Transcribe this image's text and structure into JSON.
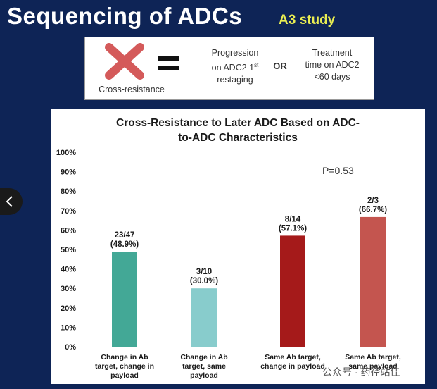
{
  "header": {
    "title": "Sequencing of ADCs",
    "study_label": "A3 study"
  },
  "legend": {
    "cross_label": "Cross-resistance",
    "equals_icon": "equals-icon",
    "x_icon": "x-icon",
    "cond1_line1": "Progression",
    "cond1_line2": "on ADC2 1",
    "cond1_sup": "st",
    "cond1_line3": "restaging",
    "or_label": "OR",
    "cond2_line1": "Treatment",
    "cond2_line2": "time on ADC2",
    "cond2_line3": "<60 days"
  },
  "p_value": "P=0.53",
  "watermark": "公众号 · 药径站佳",
  "chart_data": {
    "type": "bar",
    "title_line1": "Cross-Resistance to Later ADC Based on ADC-",
    "title_line2": "to-ADC Characteristics",
    "ylim": [
      0,
      100
    ],
    "yticks": [
      "0%",
      "10%",
      "20%",
      "30%",
      "40%",
      "50%",
      "60%",
      "70%",
      "80%",
      "90%",
      "100%"
    ],
    "categories": [
      [
        "Change in Ab",
        "target, change in",
        "payload"
      ],
      [
        "Change in Ab",
        "target, same",
        "payload"
      ],
      [
        "Same Ab target,",
        "change in payload"
      ],
      [
        "Same Ab target,",
        "same payload"
      ]
    ],
    "values": [
      48.9,
      30.0,
      57.1,
      66.7
    ],
    "labels": [
      [
        "23/47",
        "(48.9%)"
      ],
      [
        "3/10",
        "(30.0%)"
      ],
      [
        "8/14",
        "(57.1%)"
      ],
      [
        "2/3",
        "(66.7%)"
      ]
    ],
    "colors": [
      "#43a896",
      "#88cccc",
      "#a51a1a",
      "#c4554f"
    ],
    "grid": false
  }
}
